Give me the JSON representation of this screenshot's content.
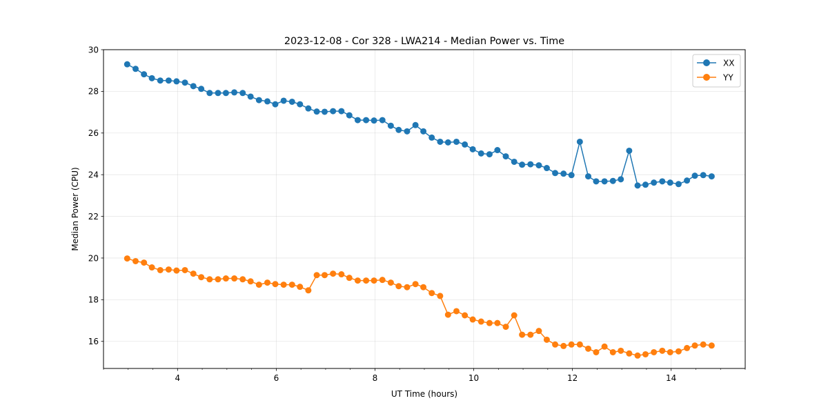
{
  "chart_data": {
    "type": "line",
    "title": "2023-12-08 - Cor 328 - LWA214 - Median Power vs. Time",
    "xlabel": "UT Time (hours)",
    "ylabel": "Median Power (CPU)",
    "xlim": [
      2.5,
      15.5
    ],
    "ylim": [
      14.7,
      30
    ],
    "xticks": [
      4,
      6,
      8,
      10,
      12,
      14
    ],
    "xtick_labels": [
      "4",
      "6",
      "8",
      "10",
      "12",
      "14"
    ],
    "yticks": [
      16,
      18,
      20,
      22,
      24,
      26,
      28,
      30
    ],
    "ytick_labels": [
      "16",
      "18",
      "20",
      "22",
      "24",
      "26",
      "28",
      "30"
    ],
    "grid": true,
    "legend_location": "top-right",
    "x": [
      2.98,
      3.15,
      3.32,
      3.48,
      3.65,
      3.82,
      3.98,
      4.15,
      4.32,
      4.48,
      4.65,
      4.82,
      4.98,
      5.15,
      5.32,
      5.48,
      5.65,
      5.82,
      5.98,
      6.15,
      6.32,
      6.48,
      6.65,
      6.82,
      6.98,
      7.15,
      7.32,
      7.48,
      7.65,
      7.82,
      7.98,
      8.15,
      8.32,
      8.48,
      8.65,
      8.82,
      8.98,
      9.15,
      9.32,
      9.48,
      9.65,
      9.82,
      9.98,
      10.15,
      10.32,
      10.48,
      10.65,
      10.82,
      10.98,
      11.15,
      11.32,
      11.48,
      11.65,
      11.82,
      11.98,
      12.15,
      12.32,
      12.48,
      12.65,
      12.82,
      12.98,
      13.15,
      13.32,
      13.48,
      13.65,
      13.82,
      13.98,
      14.15,
      14.32,
      14.48,
      14.65,
      14.82
    ],
    "series": [
      {
        "name": "XX",
        "color": "#1f77b4",
        "values": [
          29.3,
          29.08,
          28.82,
          28.63,
          28.52,
          28.52,
          28.48,
          28.42,
          28.25,
          28.12,
          27.92,
          27.92,
          27.92,
          27.95,
          27.92,
          27.75,
          27.58,
          27.52,
          27.38,
          27.55,
          27.5,
          27.38,
          27.18,
          27.03,
          27.02,
          27.05,
          27.05,
          26.85,
          26.62,
          26.62,
          26.6,
          26.62,
          26.35,
          26.15,
          26.08,
          26.38,
          26.08,
          25.78,
          25.58,
          25.55,
          25.58,
          25.45,
          25.22,
          25.02,
          24.98,
          25.18,
          24.88,
          24.62,
          24.48,
          24.5,
          24.45,
          24.32,
          24.08,
          24.05,
          23.98,
          25.58,
          23.92,
          23.68,
          23.68,
          23.7,
          23.78,
          25.15,
          23.48,
          23.52,
          23.62,
          23.68,
          23.62,
          23.55,
          23.72,
          23.95,
          23.98,
          23.92
        ]
      },
      {
        "name": "YY",
        "color": "#ff7f0e",
        "values": [
          19.98,
          19.85,
          19.78,
          19.55,
          19.42,
          19.45,
          19.4,
          19.42,
          19.25,
          19.08,
          18.98,
          18.98,
          19.02,
          19.02,
          18.98,
          18.88,
          18.72,
          18.82,
          18.75,
          18.72,
          18.72,
          18.62,
          18.45,
          19.18,
          19.18,
          19.25,
          19.22,
          19.05,
          18.92,
          18.92,
          18.92,
          18.95,
          18.82,
          18.65,
          18.6,
          18.75,
          18.6,
          18.32,
          18.18,
          17.28,
          17.45,
          17.25,
          17.05,
          16.95,
          16.88,
          16.88,
          16.7,
          17.25,
          16.32,
          16.32,
          16.5,
          16.08,
          15.85,
          15.78,
          15.85,
          15.85,
          15.65,
          15.48,
          15.75,
          15.48,
          15.55,
          15.42,
          15.32,
          15.38,
          15.48,
          15.55,
          15.48,
          15.52,
          15.68,
          15.8,
          15.85,
          15.8
        ]
      }
    ]
  }
}
